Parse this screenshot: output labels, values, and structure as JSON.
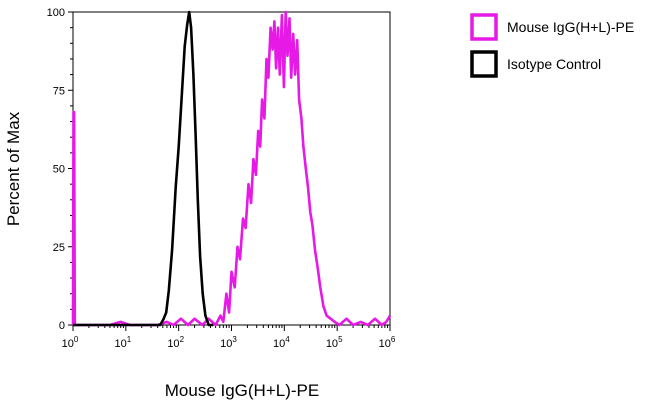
{
  "chart_data": {
    "type": "line",
    "xlabel": "Mouse IgG(H+L)-PE",
    "ylabel": "Percent of Max",
    "x_scale": "log",
    "xlim": [
      1,
      1000000
    ],
    "ylim": [
      0,
      100
    ],
    "x_ticks": [
      {
        "value": 1,
        "base": "10",
        "exp": "0"
      },
      {
        "value": 10,
        "base": "10",
        "exp": "1"
      },
      {
        "value": 100,
        "base": "10",
        "exp": "2"
      },
      {
        "value": 1000,
        "base": "10",
        "exp": "3"
      },
      {
        "value": 10000,
        "base": "10",
        "exp": "4"
      },
      {
        "value": 100000,
        "base": "10",
        "exp": "5"
      },
      {
        "value": 1000000,
        "base": "10",
        "exp": "6"
      }
    ],
    "y_ticks": [
      "0",
      "25",
      "50",
      "75",
      "100"
    ],
    "grid": false,
    "legend_position": "right",
    "series": [
      {
        "name": "Mouse IgG(H+L)-PE",
        "color": "#e619e6",
        "points": [
          [
            1,
            0
          ],
          [
            1.02,
            68
          ],
          [
            1.05,
            68
          ],
          [
            1.08,
            0
          ],
          [
            5,
            0
          ],
          [
            8,
            1
          ],
          [
            12,
            0
          ],
          [
            25,
            0
          ],
          [
            40,
            0
          ],
          [
            60,
            1
          ],
          [
            80,
            0
          ],
          [
            110,
            2
          ],
          [
            150,
            0
          ],
          [
            200,
            2
          ],
          [
            280,
            0
          ],
          [
            370,
            2
          ],
          [
            500,
            0
          ],
          [
            620,
            3
          ],
          [
            700,
            1
          ],
          [
            800,
            10
          ],
          [
            900,
            4
          ],
          [
            1000,
            17
          ],
          [
            1150,
            12
          ],
          [
            1300,
            25
          ],
          [
            1450,
            21
          ],
          [
            1650,
            34
          ],
          [
            1850,
            31
          ],
          [
            2100,
            45
          ],
          [
            2350,
            39
          ],
          [
            2600,
            53
          ],
          [
            2900,
            48
          ],
          [
            3200,
            62
          ],
          [
            3500,
            57
          ],
          [
            3800,
            72
          ],
          [
            4200,
            66
          ],
          [
            4600,
            85
          ],
          [
            5000,
            79
          ],
          [
            5500,
            95
          ],
          [
            6000,
            88
          ],
          [
            6500,
            97
          ],
          [
            7000,
            82
          ],
          [
            7600,
            95
          ],
          [
            8200,
            80
          ],
          [
            9000,
            99
          ],
          [
            9800,
            76
          ],
          [
            10600,
            100
          ],
          [
            11500,
            86
          ],
          [
            12500,
            98
          ],
          [
            13500,
            79
          ],
          [
            14700,
            93
          ],
          [
            16000,
            80
          ],
          [
            17500,
            91
          ],
          [
            19000,
            72
          ],
          [
            21000,
            66
          ],
          [
            23000,
            57
          ],
          [
            25500,
            50
          ],
          [
            28000,
            44
          ],
          [
            31000,
            36
          ],
          [
            34000,
            32
          ],
          [
            38000,
            24
          ],
          [
            43000,
            18
          ],
          [
            48000,
            12
          ],
          [
            55000,
            6
          ],
          [
            63000,
            3
          ],
          [
            75000,
            2
          ],
          [
            90000,
            1
          ],
          [
            110000,
            0
          ],
          [
            150000,
            2
          ],
          [
            200000,
            0
          ],
          [
            280000,
            1
          ],
          [
            380000,
            0
          ],
          [
            520000,
            2
          ],
          [
            700000,
            0
          ],
          [
            850000,
            1
          ],
          [
            1000000,
            3
          ]
        ]
      },
      {
        "name": "Isotype Control",
        "color": "#000000",
        "points": [
          [
            1,
            0
          ],
          [
            30,
            0
          ],
          [
            45,
            0
          ],
          [
            52,
            2
          ],
          [
            58,
            4
          ],
          [
            65,
            11
          ],
          [
            75,
            24
          ],
          [
            88,
            44
          ],
          [
            100,
            57
          ],
          [
            115,
            74
          ],
          [
            130,
            89
          ],
          [
            145,
            96
          ],
          [
            158,
            100
          ],
          [
            172,
            95
          ],
          [
            190,
            80
          ],
          [
            210,
            60
          ],
          [
            230,
            40
          ],
          [
            255,
            22
          ],
          [
            285,
            10
          ],
          [
            320,
            3
          ],
          [
            370,
            0
          ],
          [
            450,
            0
          ]
        ]
      }
    ]
  }
}
